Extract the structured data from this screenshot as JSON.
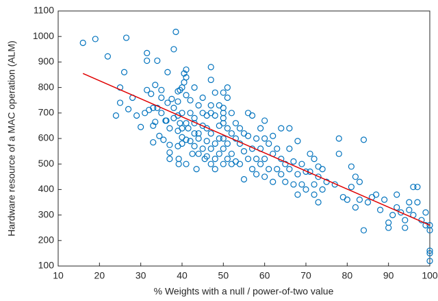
{
  "chart_data": {
    "type": "scatter",
    "xlabel": "% Weights with a null / power-of-two value",
    "ylabel": "Hardware resource of a MAC operation (ALM)",
    "xlim": [
      10,
      100
    ],
    "ylim": [
      100,
      1100
    ],
    "xticks": [
      10,
      20,
      30,
      40,
      50,
      60,
      70,
      80,
      90,
      100
    ],
    "yticks": [
      100,
      200,
      300,
      400,
      500,
      600,
      700,
      800,
      900,
      1000,
      1100
    ],
    "grid": false,
    "series": [
      {
        "color": "#0072bd",
        "marker": "circle",
        "x": [
          16,
          19,
          22,
          26.5,
          24,
          25,
          25,
          26,
          27,
          28,
          29,
          30,
          31,
          31.5,
          31.5,
          31.5,
          32,
          32.5,
          33,
          33,
          33,
          33.5,
          33.5,
          34,
          34,
          34.5,
          35,
          35,
          35,
          35.5,
          36,
          36.2,
          36.5,
          36.5,
          37,
          37,
          37,
          37,
          37.5,
          38,
          38,
          38,
          38.5,
          39,
          39,
          39,
          39,
          39,
          39.5,
          39.5,
          39.2,
          39.2,
          40,
          40,
          40,
          40,
          40,
          40.5,
          40.5,
          41,
          41,
          41,
          41,
          41,
          41,
          41.5,
          42,
          42,
          42,
          42.5,
          43,
          43,
          43,
          43,
          43,
          43.5,
          44,
          44,
          44,
          44,
          45,
          45,
          45,
          45,
          45.5,
          46,
          46,
          46,
          46,
          47,
          47,
          47,
          47,
          47,
          47,
          47,
          48,
          48,
          48,
          48,
          48,
          49,
          49,
          49,
          49,
          50,
          50,
          50,
          50,
          50,
          50,
          50,
          50,
          51,
          51,
          51,
          51,
          51,
          52,
          52,
          52,
          52,
          53,
          53,
          53,
          54,
          54,
          54,
          55,
          55,
          55,
          56,
          56,
          56,
          57,
          57,
          57,
          58,
          58,
          58,
          59,
          59,
          59,
          60,
          60,
          60,
          60,
          61,
          61,
          62,
          62,
          62,
          63,
          63,
          64,
          64,
          64,
          65,
          65,
          66,
          66,
          66,
          67,
          67,
          68,
          68,
          68,
          69,
          69,
          70,
          70,
          71,
          71,
          72,
          72,
          72,
          73,
          73,
          73,
          74,
          74,
          75,
          77,
          78,
          78,
          79,
          80,
          81,
          81,
          82,
          82,
          83,
          83,
          84,
          84,
          85,
          86,
          87,
          88,
          89,
          90,
          90,
          91,
          92,
          92,
          93,
          94,
          94,
          95,
          95,
          96,
          96,
          97,
          97,
          98,
          99,
          99,
          100,
          100,
          100,
          100,
          100
        ],
        "values": [
          975,
          990,
          922,
          995,
          690,
          740,
          800,
          860,
          715,
          760,
          690,
          645,
          700,
          790,
          935,
          905,
          712,
          775,
          720,
          585,
          650,
          810,
          665,
          905,
          720,
          610,
          700,
          790,
          760,
          595,
          670,
          670,
          860,
          740,
          640,
          545,
          520,
          575,
          755,
          950,
          680,
          720,
          1018,
          785,
          745,
          690,
          630,
          570,
          790,
          660,
          520,
          500,
          800,
          700,
          640,
          605,
          580,
          855,
          820,
          870,
          840,
          770,
          660,
          595,
          500,
          640,
          750,
          700,
          590,
          540,
          800,
          680,
          660,
          620,
          570,
          480,
          730,
          620,
          600,
          540,
          760,
          700,
          650,
          560,
          520,
          690,
          640,
          590,
          530,
          880,
          830,
          730,
          700,
          620,
          560,
          500,
          780,
          690,
          580,
          520,
          480,
          730,
          650,
          600,
          540,
          780,
          720,
          700,
          680,
          660,
          600,
          560,
          500,
          800,
          760,
          640,
          580,
          520,
          700,
          620,
          540,
          500,
          660,
          600,
          510,
          640,
          580,
          500,
          620,
          550,
          440,
          700,
          610,
          520,
          690,
          560,
          480,
          600,
          520,
          460,
          640,
          560,
          500,
          670,
          600,
          520,
          450,
          580,
          480,
          610,
          540,
          430,
          560,
          480,
          640,
          520,
          460,
          500,
          430,
          640,
          560,
          480,
          510,
          420,
          590,
          460,
          380,
          500,
          420,
          470,
          400,
          540,
          470,
          520,
          420,
          380,
          490,
          450,
          350,
          480,
          400,
          430,
          420,
          540,
          600,
          370,
          360,
          490,
          410,
          450,
          330,
          430,
          360,
          595,
          240,
          350,
          370,
          380,
          320,
          360,
          250,
          270,
          300,
          380,
          330,
          310,
          280,
          250,
          350,
          320,
          410,
          300,
          410,
          350,
          280,
          310,
          260,
          260,
          240,
          160,
          150,
          120
        ]
      },
      {
        "color": "#e00000",
        "marker": "line",
        "x": [
          16,
          100
        ],
        "values": [
          855,
          260
        ]
      }
    ]
  }
}
